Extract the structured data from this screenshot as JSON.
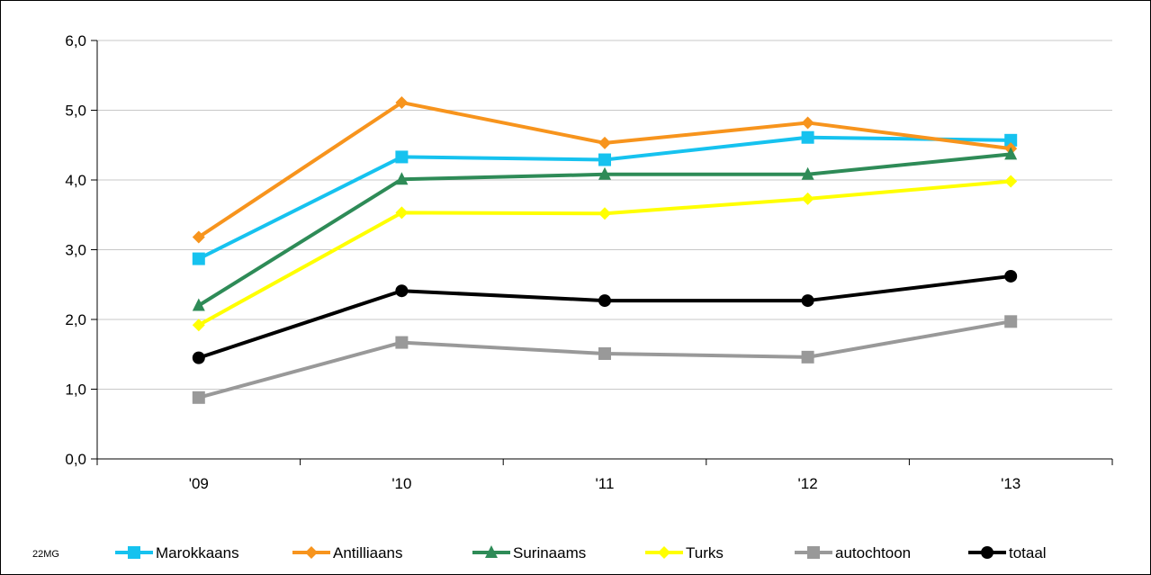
{
  "source_code": "22MG",
  "chart_data": {
    "type": "line",
    "categories": [
      "'09",
      "'10",
      "'11",
      "'12",
      "'13"
    ],
    "ylim": [
      0,
      6
    ],
    "yticks": [
      "0,0",
      "1,0",
      "2,0",
      "3,0",
      "4,0",
      "5,0",
      "6,0"
    ],
    "grid": true,
    "legend": "bottom",
    "series": [
      {
        "name": "Marokkaans",
        "color": "#16c2ef",
        "marker": "square",
        "values": [
          2.87,
          4.33,
          4.29,
          4.61,
          4.57
        ]
      },
      {
        "name": "Antilliaans",
        "color": "#f7941d",
        "marker": "diamond",
        "values": [
          3.18,
          5.11,
          4.53,
          4.82,
          4.45
        ]
      },
      {
        "name": "Surinaams",
        "color": "#2e8b57",
        "marker": "triangle",
        "values": [
          2.2,
          4.01,
          4.08,
          4.08,
          4.37
        ]
      },
      {
        "name": "Turks",
        "color": "#ffff00",
        "marker": "diamond",
        "values": [
          1.92,
          3.53,
          3.52,
          3.73,
          3.98
        ]
      },
      {
        "name": "autochtoon",
        "color": "#999999",
        "marker": "square",
        "values": [
          0.88,
          1.67,
          1.51,
          1.46,
          1.97
        ]
      },
      {
        "name": "totaal",
        "color": "#000000",
        "marker": "circle",
        "values": [
          1.45,
          2.41,
          2.27,
          2.27,
          2.62
        ]
      }
    ]
  }
}
